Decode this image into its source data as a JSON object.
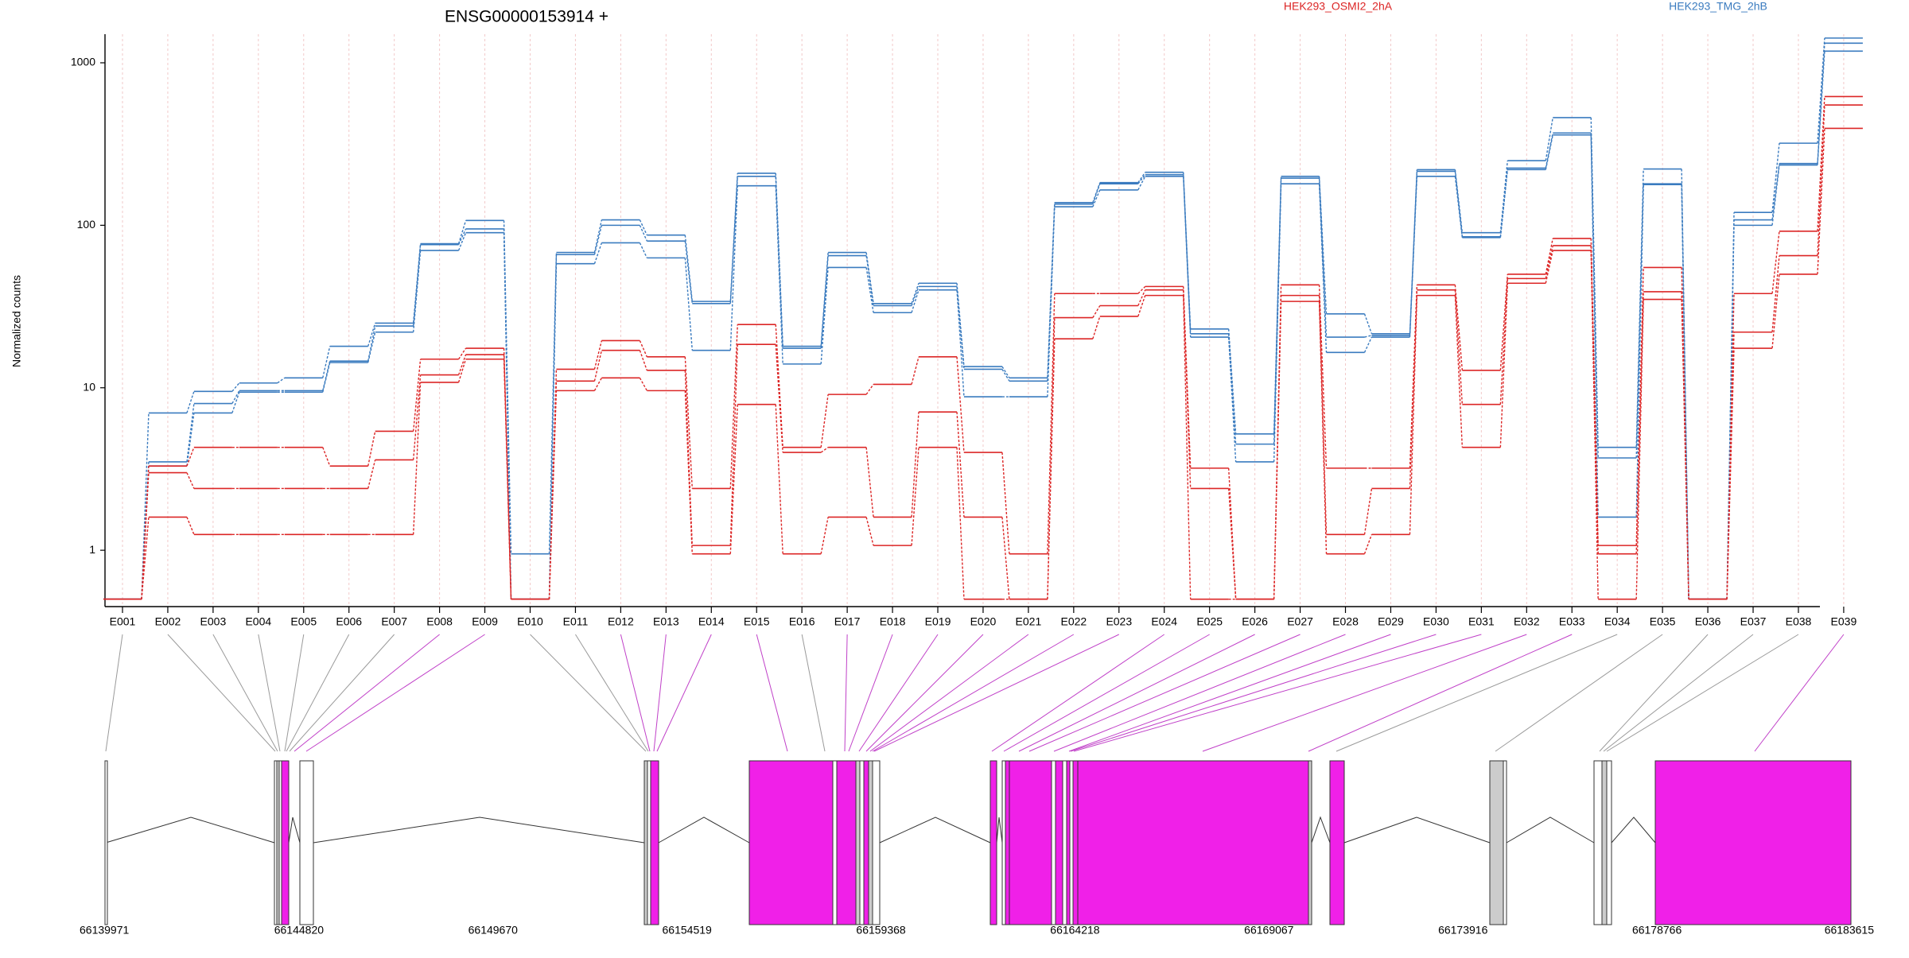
{
  "chart_data": {
    "type": "line",
    "title": "ENSG00000153914 +",
    "ylabel": "Normalized counts",
    "yscale": "log",
    "ylim": [
      0.45,
      1500
    ],
    "yticks": [
      "1",
      "10",
      "100",
      "1000"
    ],
    "ytick_values": [
      1,
      10,
      100,
      1000
    ],
    "legend_placement": "top",
    "legend": [
      {
        "label": "HEK293_OSMI2_2hA",
        "color": "#dc2626"
      },
      {
        "label": "HEK293_TMG_2hB",
        "color": "#3a7bbf"
      }
    ],
    "categories": [
      "E001",
      "E002",
      "E003",
      "E004",
      "E005",
      "E006",
      "E007",
      "E008",
      "E009",
      "E010",
      "E011",
      "E012",
      "E013",
      "E014",
      "E015",
      "E016",
      "E017",
      "E018",
      "E019",
      "E020",
      "E021",
      "E022",
      "E023",
      "E024",
      "E025",
      "E026",
      "E027",
      "E028",
      "E029",
      "E030",
      "E031",
      "E032",
      "E033",
      "E034",
      "E035",
      "E036",
      "E037",
      "E038",
      "E039"
    ],
    "series": [
      {
        "group": "HEK293_TMG_2hB",
        "color": "#3a7bbf",
        "values": [
          0.5,
          7,
          9.5,
          10.7,
          11.5,
          18,
          25,
          77,
          107,
          0.95,
          68,
          108,
          87,
          34,
          209,
          18,
          68,
          33,
          44,
          13.5,
          11.5,
          138,
          183,
          212,
          23,
          5.2,
          200,
          28.5,
          21.5,
          220,
          90,
          250,
          460,
          4.3,
          222,
          0.5,
          120,
          320,
          1420
        ]
      },
      {
        "group": "HEK293_TMG_2hB",
        "color": "#3a7bbf",
        "values": [
          0.5,
          3.5,
          8,
          9.6,
          9.6,
          14.6,
          24,
          76,
          95,
          0.5,
          66,
          100,
          80,
          33,
          200,
          17.5,
          65,
          32,
          42,
          13,
          11,
          135,
          180,
          205,
          21.5,
          4.5,
          195,
          20.5,
          21,
          215,
          85,
          225,
          370,
          3.7,
          180,
          0.5,
          108,
          240,
          1320
        ]
      },
      {
        "group": "HEK293_TMG_2hB",
        "color": "#3a7bbf",
        "values": [
          0.5,
          3.3,
          7,
          9.4,
          9.4,
          14.3,
          22,
          70,
          90,
          0.5,
          58,
          78,
          63,
          17,
          175,
          14,
          55,
          29,
          40,
          8.8,
          8.8,
          130,
          165,
          200,
          20.5,
          3.5,
          180,
          16.5,
          20.5,
          200,
          84,
          220,
          360,
          1.6,
          178,
          0.5,
          100,
          235,
          1180
        ]
      },
      {
        "group": "HEK293_OSMI2_2hA",
        "color": "#dc2626",
        "values": [
          0.5,
          3.3,
          4.3,
          4.3,
          4.3,
          3.3,
          5.4,
          15,
          17.5,
          0.5,
          13,
          19.5,
          15.5,
          2.4,
          24.5,
          4.3,
          9.1,
          10.5,
          15.5,
          4,
          0.95,
          38,
          38,
          42,
          3.2,
          0.5,
          43,
          3.2,
          3.2,
          43,
          12.8,
          50,
          83,
          1.07,
          55,
          0.5,
          38,
          92,
          620
        ]
      },
      {
        "group": "HEK293_OSMI2_2hA",
        "color": "#dc2626",
        "values": [
          0.5,
          3,
          2.4,
          2.4,
          2.4,
          2.4,
          3.6,
          12,
          16,
          0.5,
          11,
          17,
          12.8,
          1.07,
          18.5,
          4,
          4.3,
          1.6,
          7.1,
          1.6,
          0.5,
          27,
          32,
          40,
          2.4,
          0.5,
          37,
          1.25,
          2.4,
          40,
          7.9,
          47,
          75,
          0.95,
          39,
          0.5,
          22,
          65,
          550
        ]
      },
      {
        "group": "HEK293_OSMI2_2hA",
        "color": "#dc2626",
        "values": [
          0.5,
          1.6,
          1.25,
          1.25,
          1.25,
          1.25,
          1.25,
          10.8,
          15,
          0.5,
          9.6,
          11.5,
          9.6,
          0.95,
          7.9,
          0.95,
          1.6,
          1.07,
          4.3,
          0.5,
          0.5,
          20,
          27.5,
          37,
          0.5,
          0.5,
          34,
          0.95,
          1.25,
          37,
          4.3,
          44,
          70,
          0.5,
          35,
          0.5,
          17.5,
          50,
          395
        ]
      }
    ],
    "gene_model": {
      "coordinate_ticks": [
        "66139971",
        "66144820",
        "66149670",
        "66154519",
        "66159368",
        "66164218",
        "66169067",
        "66173916",
        "66178766",
        "66183615"
      ],
      "exon_color_testable": "#f020e8",
      "exon_color_other": "#cccccc"
    }
  }
}
